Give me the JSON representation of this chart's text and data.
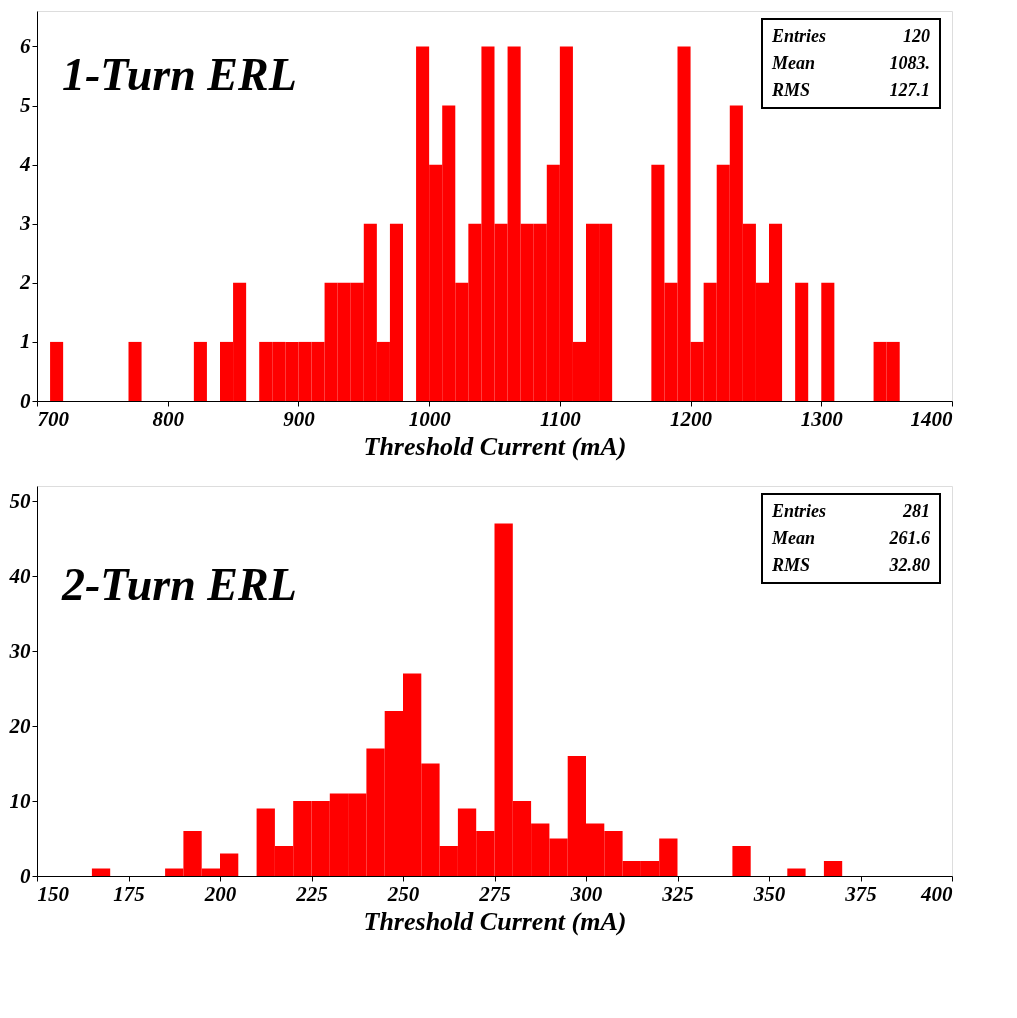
{
  "chart_data": [
    {
      "type": "histogram",
      "title": "1-Turn ERL",
      "xlabel": "Threshold Current (mA)",
      "color": "#ff0000",
      "bins": [
        700,
        710,
        720,
        730,
        740,
        750,
        760,
        770,
        780,
        790,
        800,
        810,
        820,
        830,
        840,
        850,
        860,
        870,
        880,
        890,
        900,
        910,
        920,
        930,
        940,
        950,
        960,
        970,
        980,
        990,
        1000,
        1010,
        1020,
        1030,
        1040,
        1050,
        1060,
        1070,
        1080,
        1090,
        1100,
        1110,
        1120,
        1130,
        1140,
        1150,
        1160,
        1170,
        1180,
        1190,
        1200,
        1210,
        1220,
        1230,
        1240,
        1250,
        1260,
        1270,
        1280,
        1290,
        1300,
        1310,
        1320,
        1330,
        1340,
        1350,
        1360,
        1370,
        1380,
        1390,
        1400
      ],
      "values": [
        0,
        1,
        0,
        0,
        0,
        0,
        0,
        1,
        0,
        0,
        0,
        0,
        1,
        0,
        1,
        2,
        0,
        1,
        1,
        1,
        1,
        1,
        2,
        2,
        2,
        3,
        1,
        3,
        0,
        6,
        4,
        5,
        2,
        3,
        6,
        3,
        6,
        3,
        3,
        4,
        6,
        1,
        3,
        3,
        0,
        0,
        0,
        4,
        2,
        6,
        1,
        2,
        4,
        5,
        3,
        2,
        3,
        0,
        2,
        0,
        2,
        0,
        0,
        0,
        1,
        1,
        0,
        0,
        0,
        0
      ],
      "xlim": [
        700,
        1400
      ],
      "xticks": [
        700,
        800,
        900,
        1000,
        1100,
        1200,
        1300,
        1400
      ],
      "ylim": [
        0,
        6.6
      ],
      "yticks": [
        0,
        1,
        2,
        3,
        4,
        5,
        6
      ],
      "annotations": [
        "Entries",
        "120",
        "Mean",
        "1083.",
        "RMS",
        "127.1"
      ]
    },
    {
      "type": "histogram",
      "title": "2-Turn ERL",
      "xlabel": "Threshold Current (mA)",
      "color": "#ff0000",
      "bins": [
        150,
        155,
        160,
        165,
        170,
        175,
        180,
        185,
        190,
        195,
        200,
        205,
        210,
        215,
        220,
        225,
        230,
        235,
        240,
        245,
        250,
        255,
        260,
        265,
        270,
        275,
        280,
        285,
        290,
        295,
        300,
        305,
        310,
        315,
        320,
        325,
        330,
        335,
        340,
        345,
        350,
        355,
        360,
        365,
        370,
        375,
        380,
        385,
        390,
        395,
        400
      ],
      "values": [
        0,
        0,
        0,
        1,
        0,
        0,
        0,
        1,
        6,
        1,
        3,
        0,
        9,
        4,
        10,
        10,
        11,
        11,
        17,
        22,
        27,
        15,
        4,
        9,
        6,
        47,
        10,
        7,
        5,
        16,
        7,
        6,
        2,
        2,
        5,
        0,
        0,
        0,
        4,
        0,
        0,
        1,
        0,
        2,
        0,
        0,
        0,
        0,
        0,
        0
      ],
      "xlim": [
        150,
        400
      ],
      "xticks": [
        150,
        175,
        200,
        225,
        250,
        275,
        300,
        325,
        350,
        375,
        400
      ],
      "ylim": [
        0,
        52
      ],
      "yticks": [
        0,
        10,
        20,
        30,
        40,
        50
      ],
      "annotations": [
        "Entries",
        "281",
        "Mean",
        "261.6",
        "RMS",
        "32.80"
      ]
    }
  ]
}
